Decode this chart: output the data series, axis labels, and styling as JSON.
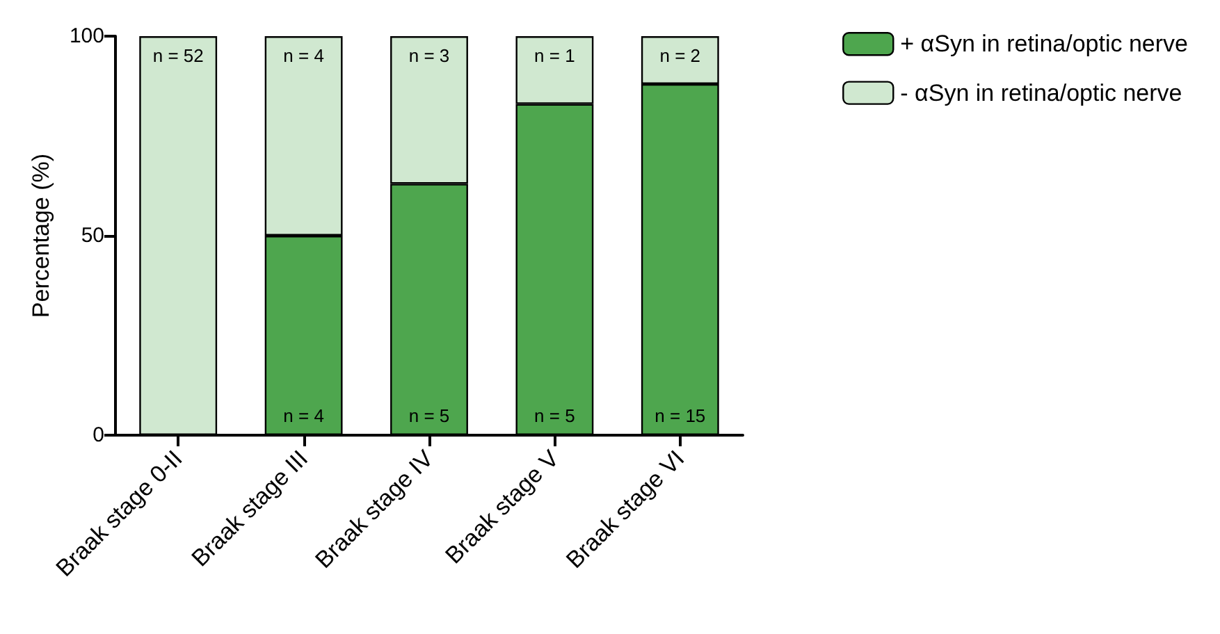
{
  "chart_data": {
    "type": "bar",
    "stacked": true,
    "ylabel": "Percentage (%)",
    "categories": [
      "Braak stage 0-II",
      "Braak stage III",
      "Braak stage IV",
      "Braak stage V",
      "Braak stage VI"
    ],
    "series": [
      {
        "name": "+ αSyn in retina/optic nerve",
        "color": "#4ea64e",
        "values": [
          0,
          50,
          63,
          83,
          88
        ]
      },
      {
        "name": "- αSyn in retina/optic nerve",
        "color": "#d0e8d0",
        "values": [
          100,
          50,
          37,
          17,
          12
        ]
      }
    ],
    "annotations": [
      {
        "text": "n = 52",
        "x": "Braak stage 0-II",
        "y": 100
      },
      {
        "text": "n = 4",
        "x": "Braak stage III",
        "y": 100
      },
      {
        "text": "n = 3",
        "x": "Braak stage IV",
        "y": 100
      },
      {
        "text": "n = 1",
        "x": "Braak stage V",
        "y": 100
      },
      {
        "text": "n = 2",
        "x": "Braak stage VI",
        "y": 100
      },
      {
        "text": "n = 4",
        "x": "Braak stage III",
        "y": 0
      },
      {
        "text": "n = 5",
        "x": "Braak stage IV",
        "y": 0
      },
      {
        "text": "n = 5",
        "x": "Braak stage V",
        "y": 0
      },
      {
        "text": "n = 15",
        "x": "Braak stage VI",
        "y": 0
      }
    ],
    "ylim": [
      0,
      100
    ],
    "yticks": [
      0,
      50,
      100
    ],
    "grid": false,
    "legend": "top right"
  }
}
